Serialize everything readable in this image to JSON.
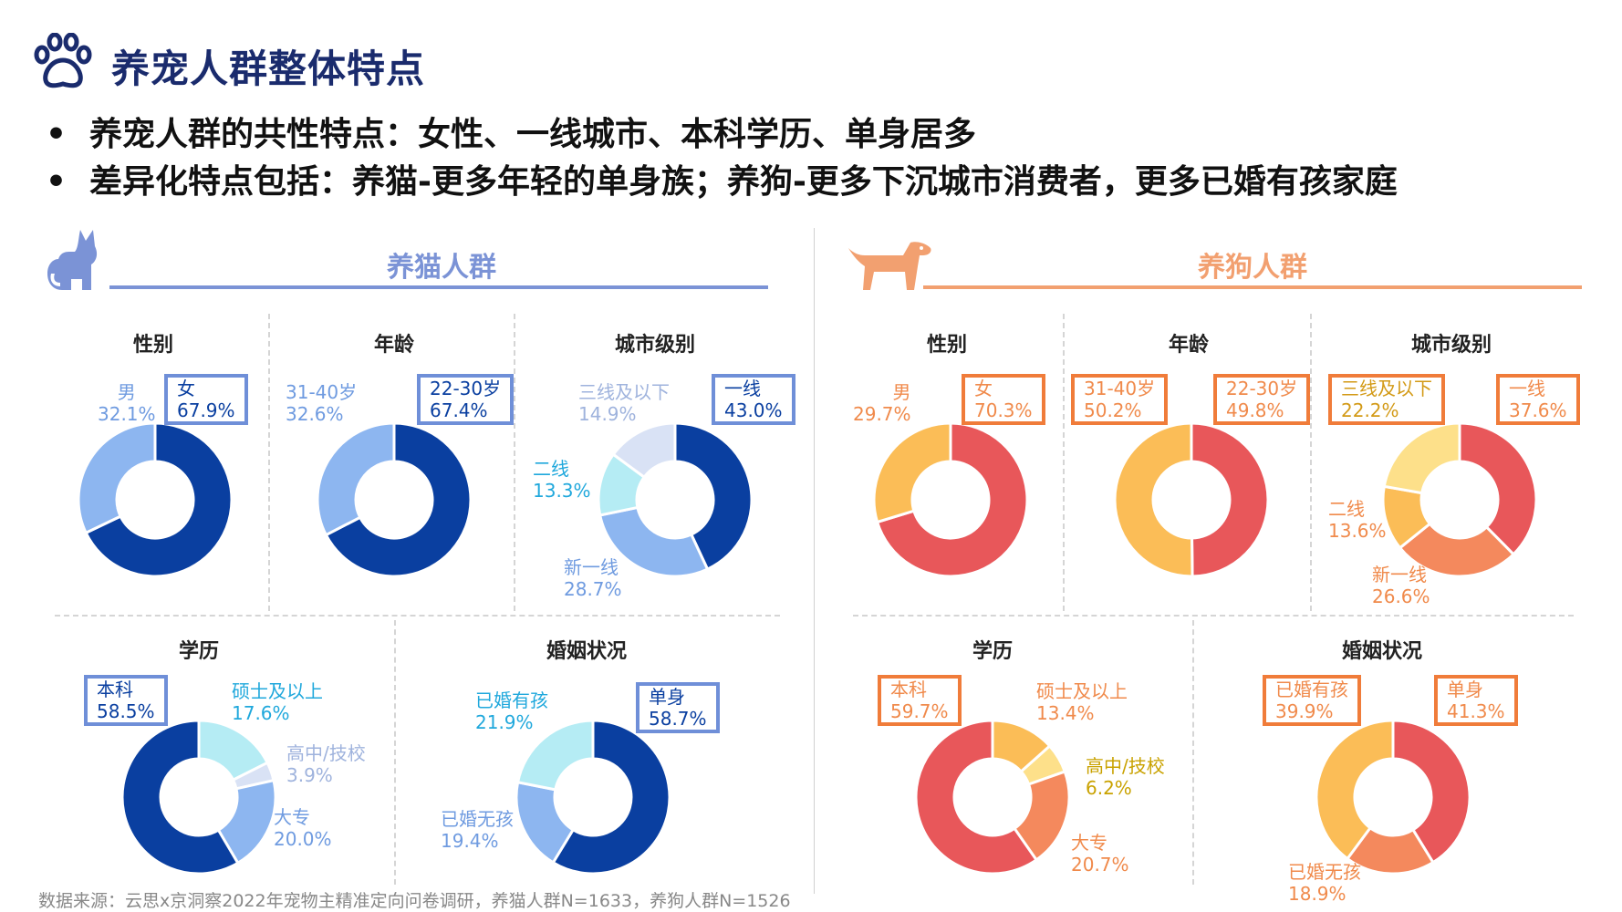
{
  "header": {
    "title": "养宠人群整体特点",
    "bullets": [
      "养宠人群的共性特点：女性、一线城市、本科学历、单身居多",
      "差异化特点包括：养猫-更多年轻的单身族；养狗-更多下沉城市消费者，更多已婚有孩家庭"
    ]
  },
  "sections": {
    "cat": {
      "title": "养猫人群",
      "accent": "#7b93d6",
      "icon": "cat-icon"
    },
    "dog": {
      "title": "养狗人群",
      "accent": "#f2a070",
      "icon": "dog-icon"
    }
  },
  "source_note": "数据来源：云思x京洞察2022年宠物主精准定向问卷调研，养猫人群N=1633，养狗人群N=1526",
  "chart_data": [
    {
      "type": "pie",
      "group": "养猫人群",
      "title": "性别",
      "categories": [
        "女",
        "男"
      ],
      "values": [
        67.9,
        32.1
      ],
      "labels": [
        "67.9%",
        "32.1%"
      ],
      "colors": [
        "#0a3fa0",
        "#8db6f0"
      ]
    },
    {
      "type": "pie",
      "group": "养猫人群",
      "title": "年龄",
      "categories": [
        "22-30岁",
        "31-40岁"
      ],
      "values": [
        67.4,
        32.6
      ],
      "labels": [
        "67.4%",
        "32.6%"
      ],
      "colors": [
        "#0a3fa0",
        "#8db6f0"
      ]
    },
    {
      "type": "pie",
      "group": "养猫人群",
      "title": "城市级别",
      "categories": [
        "一线",
        "新一线",
        "二线",
        "三线及以下"
      ],
      "values": [
        43.0,
        28.7,
        13.3,
        14.9
      ],
      "labels": [
        "43.0%",
        "28.7%",
        "13.3%",
        "14.9%"
      ],
      "colors": [
        "#0a3fa0",
        "#8db6f0",
        "#b5ecf4",
        "#d9e2f5"
      ]
    },
    {
      "type": "pie",
      "group": "养猫人群",
      "title": "学历",
      "categories": [
        "硕士及以上",
        "高中/技校",
        "大专",
        "本科"
      ],
      "values": [
        17.6,
        3.9,
        20.0,
        58.5
      ],
      "labels": [
        "17.6%",
        "3.9%",
        "20.0%",
        "58.5%"
      ],
      "colors": [
        "#b5ecf4",
        "#d9e2f5",
        "#8db6f0",
        "#0a3fa0"
      ]
    },
    {
      "type": "pie",
      "group": "养猫人群",
      "title": "婚姻状况",
      "categories": [
        "单身",
        "已婚无孩",
        "已婚有孩"
      ],
      "values": [
        58.7,
        19.4,
        21.9
      ],
      "labels": [
        "58.7%",
        "19.4%",
        "21.9%"
      ],
      "colors": [
        "#0a3fa0",
        "#8db6f0",
        "#b5ecf4"
      ]
    },
    {
      "type": "pie",
      "group": "养狗人群",
      "title": "性别",
      "categories": [
        "女",
        "男"
      ],
      "values": [
        70.3,
        29.7
      ],
      "labels": [
        "70.3%",
        "29.7%"
      ],
      "colors": [
        "#e8575a",
        "#fbbd57"
      ]
    },
    {
      "type": "pie",
      "group": "养狗人群",
      "title": "年龄",
      "categories": [
        "22-30岁",
        "31-40岁"
      ],
      "values": [
        49.8,
        50.2
      ],
      "labels": [
        "49.8%",
        "50.2%"
      ],
      "colors": [
        "#e8575a",
        "#fbbd57"
      ]
    },
    {
      "type": "pie",
      "group": "养狗人群",
      "title": "城市级别",
      "categories": [
        "一线",
        "新一线",
        "二线",
        "三线及以下"
      ],
      "values": [
        37.6,
        26.6,
        13.6,
        22.2
      ],
      "labels": [
        "37.6%",
        "26.6%",
        "13.6%",
        "22.2%"
      ],
      "colors": [
        "#e8575a",
        "#f4895d",
        "#fbbd57",
        "#fde08a"
      ]
    },
    {
      "type": "pie",
      "group": "养狗人群",
      "title": "学历",
      "categories": [
        "硕士及以上",
        "高中/技校",
        "大专",
        "本科"
      ],
      "values": [
        13.4,
        6.2,
        20.7,
        59.7
      ],
      "labels": [
        "13.4%",
        "6.2%",
        "20.7%",
        "59.7%"
      ],
      "colors": [
        "#fbbd57",
        "#fde08a",
        "#f4895d",
        "#e8575a"
      ]
    },
    {
      "type": "pie",
      "group": "养狗人群",
      "title": "婚姻状况",
      "categories": [
        "单身",
        "已婚无孩",
        "已婚有孩"
      ],
      "values": [
        41.3,
        18.9,
        39.9
      ],
      "labels": [
        "41.3%",
        "18.9%",
        "39.9%"
      ],
      "colors": [
        "#e8575a",
        "#f4895d",
        "#fbbd57"
      ]
    }
  ]
}
